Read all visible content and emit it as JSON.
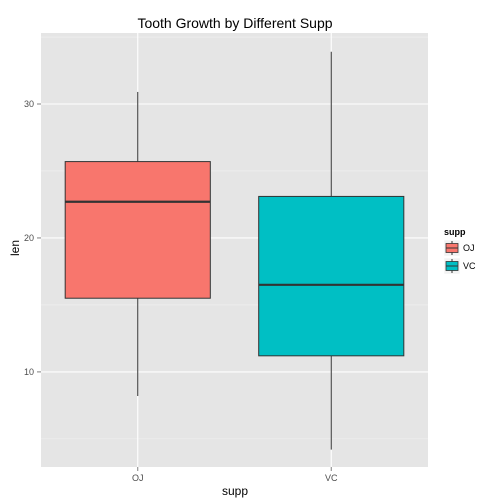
{
  "chart_data": {
    "type": "box",
    "title": "Tooth Growth by Different Supp",
    "xlabel": "supp",
    "ylabel": "len",
    "ylim": [
      2.9,
      35.3
    ],
    "y_ticks": [
      10,
      20,
      30
    ],
    "y_tick_labels": [
      "10",
      "20",
      "30"
    ],
    "categories": [
      "OJ",
      "VC"
    ],
    "boxes": [
      {
        "category": "OJ",
        "min": 8.2,
        "q1": 15.5,
        "median": 22.7,
        "q3": 25.7,
        "max": 30.9,
        "color": "#F8766D"
      },
      {
        "category": "VC",
        "min": 4.2,
        "q1": 11.2,
        "median": 16.5,
        "q3": 23.1,
        "max": 33.9,
        "color": "#00BFC4"
      }
    ],
    "legend": {
      "title": "supp",
      "placement": "right",
      "items": [
        {
          "label": "OJ",
          "color": "#F8766D"
        },
        {
          "label": "VC",
          "color": "#00BFC4"
        }
      ]
    },
    "grid": true,
    "panel_background": "#E5E5E5",
    "grid_color": "#FFFFFF"
  }
}
